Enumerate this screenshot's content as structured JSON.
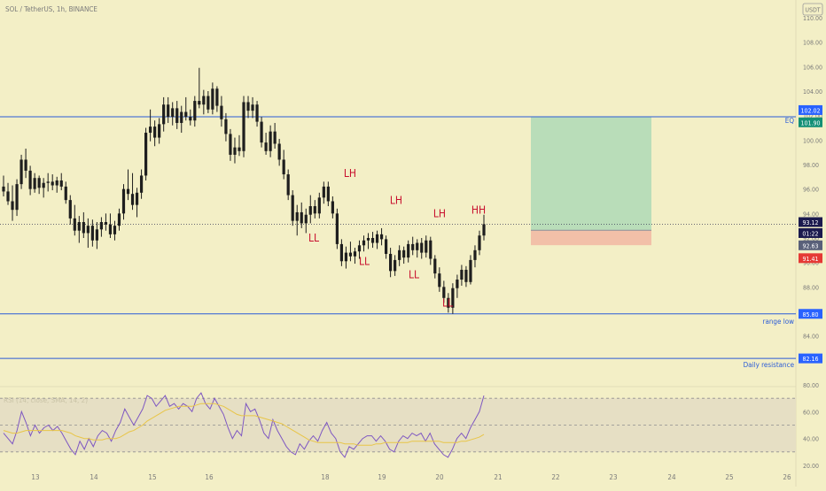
{
  "header": {
    "symbol_title": "SOL / TetherUS, 1h, BINANCE",
    "currency_badge": "USDT"
  },
  "chart_data": [
    {
      "type": "candlestick",
      "title": "SOL / TetherUS, 1h, BINANCE",
      "price_axis": {
        "ticks": [
          "110.00",
          "108.00",
          "106.00",
          "104.00",
          "102.00",
          "100.00",
          "98.00",
          "96.00",
          "94.00",
          "92.00",
          "90.00",
          "88.00",
          "86.00",
          "84.00",
          "82.00",
          "80.00"
        ],
        "ylim": [
          80,
          110
        ]
      },
      "time_axis": {
        "ticks": [
          "13",
          "14",
          "15",
          "16",
          "18",
          "19",
          "20",
          "21",
          "22",
          "23",
          "24",
          "25",
          "26"
        ]
      },
      "price_levels": [
        {
          "name": "eq-line",
          "price": 101.9,
          "color": "#2a5bd7",
          "label": "EQ"
        },
        {
          "name": "range-low-line",
          "price": 85.8,
          "color": "#2a5bd7",
          "label": "range low"
        },
        {
          "name": "daily-resistance-line",
          "price": 82.16,
          "color": "#2a5bd7",
          "label": "Daily resistance"
        }
      ],
      "axis_badges": [
        {
          "text": "102.02",
          "color": "#2962ff",
          "price": 102.45
        },
        {
          "text": "101.90",
          "color": "#138f76",
          "price": 101.45
        },
        {
          "text": "93.12",
          "color": "#1b1a4e",
          "price": 93.3
        },
        {
          "text": "01:22",
          "color": "#1b1a4e",
          "price": 92.4
        },
        {
          "text": "92.63",
          "color": "#596079",
          "price": 91.4
        },
        {
          "text": "91.41",
          "color": "#e53935",
          "price": 90.35
        },
        {
          "text": "85.80",
          "color": "#2962ff",
          "price": 85.8
        },
        {
          "text": "82.16",
          "color": "#2962ff",
          "price": 82.16
        }
      ],
      "position_tool": {
        "entry": 92.63,
        "stop": 91.41,
        "target": 101.9,
        "profit_color": "#b9ddb9",
        "loss_color": "#f2c0a8"
      },
      "current_price": 93.12,
      "swing_labels": [
        {
          "text": "LH",
          "price": 97.0
        },
        {
          "text": "LL",
          "price": 91.7
        },
        {
          "text": "LL",
          "price": 89.8
        },
        {
          "text": "LH",
          "price": 94.8
        },
        {
          "text": "LL",
          "price": 88.7
        },
        {
          "text": "LH",
          "price": 93.7
        },
        {
          "text": "HH",
          "price": 94.0
        },
        {
          "text": "LL",
          "price": 86.4
        }
      ],
      "candles": [
        {
          "o": 96.2,
          "h": 97.1,
          "l": 95.4,
          "c": 95.8
        },
        {
          "o": 95.8,
          "h": 96.5,
          "l": 94.7,
          "c": 95.0
        },
        {
          "o": 95.0,
          "h": 96.3,
          "l": 93.4,
          "c": 94.3
        },
        {
          "o": 94.3,
          "h": 96.8,
          "l": 93.8,
          "c": 96.4
        },
        {
          "o": 96.4,
          "h": 98.8,
          "l": 96.0,
          "c": 98.4
        },
        {
          "o": 98.4,
          "h": 99.3,
          "l": 96.9,
          "c": 97.5
        },
        {
          "o": 97.5,
          "h": 97.9,
          "l": 95.5,
          "c": 96.0
        },
        {
          "o": 96.0,
          "h": 97.3,
          "l": 95.7,
          "c": 96.9
        },
        {
          "o": 96.9,
          "h": 97.1,
          "l": 95.6,
          "c": 96.1
        },
        {
          "o": 96.1,
          "h": 96.9,
          "l": 95.3,
          "c": 96.5
        },
        {
          "o": 96.5,
          "h": 97.3,
          "l": 95.8,
          "c": 96.6
        },
        {
          "o": 96.6,
          "h": 97.2,
          "l": 95.9,
          "c": 96.3
        },
        {
          "o": 96.3,
          "h": 97.0,
          "l": 95.7,
          "c": 96.7
        },
        {
          "o": 96.7,
          "h": 97.3,
          "l": 95.9,
          "c": 96.2
        },
        {
          "o": 96.2,
          "h": 96.6,
          "l": 94.8,
          "c": 95.1
        },
        {
          "o": 95.1,
          "h": 95.5,
          "l": 93.1,
          "c": 93.6
        },
        {
          "o": 93.6,
          "h": 94.7,
          "l": 92.2,
          "c": 92.6
        },
        {
          "o": 92.6,
          "h": 93.8,
          "l": 91.6,
          "c": 93.3
        },
        {
          "o": 93.3,
          "h": 94.1,
          "l": 92.0,
          "c": 92.4
        },
        {
          "o": 92.4,
          "h": 93.6,
          "l": 91.2,
          "c": 93.0
        },
        {
          "o": 93.0,
          "h": 93.5,
          "l": 91.3,
          "c": 91.8
        },
        {
          "o": 91.8,
          "h": 93.3,
          "l": 91.1,
          "c": 92.7
        },
        {
          "o": 92.7,
          "h": 93.7,
          "l": 92.1,
          "c": 93.3
        },
        {
          "o": 93.3,
          "h": 94.0,
          "l": 92.6,
          "c": 93.1
        },
        {
          "o": 93.1,
          "h": 94.0,
          "l": 92.0,
          "c": 92.3
        },
        {
          "o": 92.3,
          "h": 93.4,
          "l": 91.8,
          "c": 93.0
        },
        {
          "o": 93.0,
          "h": 94.4,
          "l": 92.6,
          "c": 94.0
        },
        {
          "o": 94.0,
          "h": 96.4,
          "l": 93.5,
          "c": 96.0
        },
        {
          "o": 96.0,
          "h": 97.6,
          "l": 95.1,
          "c": 95.6
        },
        {
          "o": 95.6,
          "h": 97.3,
          "l": 94.3,
          "c": 94.7
        },
        {
          "o": 94.7,
          "h": 96.1,
          "l": 93.7,
          "c": 95.7
        },
        {
          "o": 95.7,
          "h": 97.6,
          "l": 95.2,
          "c": 97.1
        },
        {
          "o": 97.1,
          "h": 101.0,
          "l": 96.7,
          "c": 100.6
        },
        {
          "o": 100.6,
          "h": 102.5,
          "l": 99.9,
          "c": 101.1
        },
        {
          "o": 101.1,
          "h": 101.6,
          "l": 99.5,
          "c": 100.2
        },
        {
          "o": 100.2,
          "h": 101.8,
          "l": 99.7,
          "c": 101.3
        },
        {
          "o": 101.3,
          "h": 103.5,
          "l": 100.7,
          "c": 102.9
        },
        {
          "o": 102.9,
          "h": 103.5,
          "l": 101.4,
          "c": 101.9
        },
        {
          "o": 101.9,
          "h": 103.1,
          "l": 101.2,
          "c": 102.6
        },
        {
          "o": 102.6,
          "h": 103.2,
          "l": 100.9,
          "c": 101.4
        },
        {
          "o": 101.4,
          "h": 102.8,
          "l": 100.6,
          "c": 102.3
        },
        {
          "o": 102.3,
          "h": 103.5,
          "l": 101.6,
          "c": 101.9
        },
        {
          "o": 101.9,
          "h": 102.5,
          "l": 101.2,
          "c": 101.6
        },
        {
          "o": 101.6,
          "h": 103.6,
          "l": 101.1,
          "c": 103.2
        },
        {
          "o": 103.2,
          "h": 105.9,
          "l": 102.6,
          "c": 102.9
        },
        {
          "o": 102.9,
          "h": 104.1,
          "l": 102.1,
          "c": 103.6
        },
        {
          "o": 103.6,
          "h": 104.0,
          "l": 102.2,
          "c": 102.5
        },
        {
          "o": 102.5,
          "h": 104.7,
          "l": 102.1,
          "c": 104.2
        },
        {
          "o": 104.2,
          "h": 104.4,
          "l": 102.3,
          "c": 102.8
        },
        {
          "o": 102.8,
          "h": 103.6,
          "l": 101.1,
          "c": 101.7
        },
        {
          "o": 101.7,
          "h": 102.2,
          "l": 99.9,
          "c": 100.5
        },
        {
          "o": 100.5,
          "h": 100.9,
          "l": 98.3,
          "c": 98.8
        },
        {
          "o": 98.8,
          "h": 100.2,
          "l": 98.1,
          "c": 99.4
        },
        {
          "o": 99.4,
          "h": 100.4,
          "l": 98.7,
          "c": 99.1
        },
        {
          "o": 99.1,
          "h": 103.6,
          "l": 98.6,
          "c": 103.1
        },
        {
          "o": 103.1,
          "h": 103.6,
          "l": 101.8,
          "c": 102.4
        },
        {
          "o": 102.4,
          "h": 103.5,
          "l": 101.8,
          "c": 102.9
        },
        {
          "o": 102.9,
          "h": 103.2,
          "l": 101.1,
          "c": 101.5
        },
        {
          "o": 101.5,
          "h": 101.9,
          "l": 99.4,
          "c": 99.8
        },
        {
          "o": 99.8,
          "h": 100.6,
          "l": 98.8,
          "c": 99.1
        },
        {
          "o": 99.1,
          "h": 101.2,
          "l": 98.6,
          "c": 100.7
        },
        {
          "o": 100.7,
          "h": 101.4,
          "l": 99.3,
          "c": 99.7
        },
        {
          "o": 99.7,
          "h": 100.1,
          "l": 97.9,
          "c": 98.4
        },
        {
          "o": 98.4,
          "h": 99.2,
          "l": 96.8,
          "c": 97.2
        },
        {
          "o": 97.2,
          "h": 97.6,
          "l": 95.1,
          "c": 95.5
        },
        {
          "o": 95.5,
          "h": 95.9,
          "l": 93.0,
          "c": 93.4
        },
        {
          "o": 93.4,
          "h": 94.7,
          "l": 92.2,
          "c": 94.1
        },
        {
          "o": 94.1,
          "h": 94.9,
          "l": 92.8,
          "c": 93.2
        },
        {
          "o": 93.2,
          "h": 94.4,
          "l": 92.4,
          "c": 93.9
        },
        {
          "o": 93.9,
          "h": 95.5,
          "l": 93.2,
          "c": 94.6
        },
        {
          "o": 94.6,
          "h": 95.1,
          "l": 93.6,
          "c": 94.0
        },
        {
          "o": 94.0,
          "h": 95.7,
          "l": 93.6,
          "c": 95.3
        },
        {
          "o": 95.3,
          "h": 96.6,
          "l": 94.8,
          "c": 96.2
        },
        {
          "o": 96.2,
          "h": 96.6,
          "l": 94.6,
          "c": 95.0
        },
        {
          "o": 95.0,
          "h": 95.4,
          "l": 93.6,
          "c": 94.0
        },
        {
          "o": 94.0,
          "h": 94.4,
          "l": 91.1,
          "c": 91.5
        },
        {
          "o": 91.5,
          "h": 91.9,
          "l": 89.7,
          "c": 90.1
        },
        {
          "o": 90.1,
          "h": 91.3,
          "l": 89.5,
          "c": 90.8
        },
        {
          "o": 90.8,
          "h": 91.7,
          "l": 90.1,
          "c": 90.5
        },
        {
          "o": 90.5,
          "h": 91.2,
          "l": 89.9,
          "c": 90.9
        },
        {
          "o": 90.9,
          "h": 91.8,
          "l": 90.3,
          "c": 91.4
        },
        {
          "o": 91.4,
          "h": 92.2,
          "l": 90.9,
          "c": 91.8
        },
        {
          "o": 91.8,
          "h": 92.4,
          "l": 91.1,
          "c": 92.0
        },
        {
          "o": 92.0,
          "h": 92.5,
          "l": 91.2,
          "c": 91.6
        },
        {
          "o": 91.6,
          "h": 92.6,
          "l": 91.1,
          "c": 92.3
        },
        {
          "o": 92.3,
          "h": 92.8,
          "l": 91.4,
          "c": 91.9
        },
        {
          "o": 91.9,
          "h": 92.2,
          "l": 90.3,
          "c": 90.7
        },
        {
          "o": 90.7,
          "h": 91.2,
          "l": 88.8,
          "c": 89.3
        },
        {
          "o": 89.3,
          "h": 90.6,
          "l": 88.9,
          "c": 90.2
        },
        {
          "o": 90.2,
          "h": 91.4,
          "l": 89.7,
          "c": 91.0
        },
        {
          "o": 91.0,
          "h": 91.3,
          "l": 89.9,
          "c": 90.4
        },
        {
          "o": 90.4,
          "h": 91.8,
          "l": 90.0,
          "c": 91.5
        },
        {
          "o": 91.5,
          "h": 92.1,
          "l": 90.6,
          "c": 91.0
        },
        {
          "o": 91.0,
          "h": 91.9,
          "l": 90.4,
          "c": 91.6
        },
        {
          "o": 91.6,
          "h": 92.0,
          "l": 90.3,
          "c": 90.8
        },
        {
          "o": 90.8,
          "h": 92.2,
          "l": 90.4,
          "c": 91.8
        },
        {
          "o": 91.8,
          "h": 92.1,
          "l": 89.8,
          "c": 90.3
        },
        {
          "o": 90.3,
          "h": 90.6,
          "l": 88.7,
          "c": 89.1
        },
        {
          "o": 89.1,
          "h": 89.6,
          "l": 87.6,
          "c": 88.0
        },
        {
          "o": 88.0,
          "h": 88.5,
          "l": 86.7,
          "c": 87.1
        },
        {
          "o": 87.1,
          "h": 87.5,
          "l": 85.9,
          "c": 86.3
        },
        {
          "o": 86.3,
          "h": 88.3,
          "l": 85.8,
          "c": 87.9
        },
        {
          "o": 87.9,
          "h": 89.0,
          "l": 87.1,
          "c": 88.6
        },
        {
          "o": 88.6,
          "h": 89.8,
          "l": 88.1,
          "c": 89.4
        },
        {
          "o": 89.4,
          "h": 89.7,
          "l": 88.0,
          "c": 88.4
        },
        {
          "o": 88.4,
          "h": 90.6,
          "l": 88.2,
          "c": 90.2
        },
        {
          "o": 90.2,
          "h": 91.4,
          "l": 89.6,
          "c": 91.0
        },
        {
          "o": 91.0,
          "h": 92.6,
          "l": 90.6,
          "c": 92.2
        },
        {
          "o": 92.2,
          "h": 93.9,
          "l": 91.8,
          "c": 93.12
        }
      ]
    },
    {
      "type": "line",
      "title": "RSI (14, close, SMA, 14, 2)",
      "ylim": [
        20,
        80
      ],
      "y_ticks": [
        "80.00",
        "60.00",
        "40.00",
        "20.00"
      ],
      "band": {
        "upper": 70,
        "middle": 50,
        "lower": 30
      },
      "series": [
        {
          "name": "RSI",
          "color": "#7e57c2",
          "values": [
            44,
            40,
            36,
            46,
            60,
            52,
            42,
            50,
            44,
            48,
            50,
            46,
            49,
            44,
            38,
            32,
            28,
            38,
            32,
            40,
            34,
            42,
            46,
            44,
            38,
            46,
            52,
            62,
            56,
            50,
            56,
            62,
            72,
            70,
            64,
            68,
            72,
            64,
            66,
            62,
            66,
            64,
            60,
            70,
            74,
            66,
            62,
            70,
            64,
            58,
            48,
            40,
            46,
            42,
            66,
            60,
            62,
            54,
            44,
            40,
            54,
            46,
            40,
            34,
            30,
            28,
            36,
            32,
            38,
            42,
            38,
            46,
            52,
            44,
            40,
            30,
            26,
            34,
            32,
            36,
            40,
            42,
            42,
            38,
            42,
            38,
            32,
            30,
            38,
            42,
            40,
            44,
            42,
            44,
            38,
            44,
            36,
            32,
            28,
            26,
            32,
            40,
            44,
            40,
            48,
            54,
            60,
            72
          ]
        },
        {
          "name": "RSI-based MA",
          "color": "#e8c547",
          "values": [
            46,
            45,
            44,
            44,
            45,
            46,
            46,
            46,
            46,
            46,
            46,
            46,
            46,
            46,
            45,
            44,
            42,
            41,
            40,
            40,
            39,
            39,
            39,
            40,
            40,
            40,
            41,
            43,
            45,
            46,
            48,
            50,
            53,
            55,
            57,
            59,
            61,
            62,
            63,
            64,
            64,
            64,
            64,
            65,
            66,
            66,
            66,
            66,
            65,
            64,
            62,
            60,
            58,
            57,
            57,
            57,
            57,
            56,
            55,
            54,
            53,
            52,
            51,
            49,
            47,
            45,
            43,
            41,
            39,
            38,
            37,
            37,
            37,
            37,
            37,
            37,
            36,
            36,
            36,
            35,
            35,
            35,
            35,
            36,
            36,
            37,
            37,
            37,
            37,
            37,
            37,
            38,
            38,
            38,
            38,
            38,
            38,
            38,
            37,
            37,
            37,
            37,
            38,
            38,
            39,
            40,
            41,
            43
          ]
        }
      ]
    }
  ]
}
